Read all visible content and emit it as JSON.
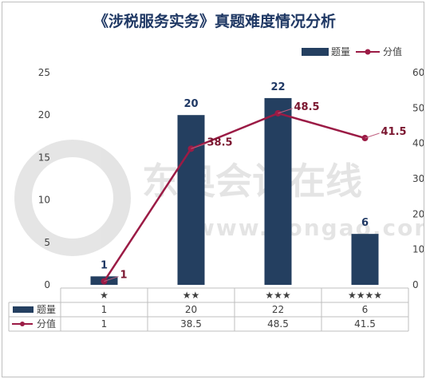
{
  "chart_data": {
    "type": "bar",
    "title": "《涉税服务实务》真题难度情况分析",
    "categories": [
      "★",
      "★★",
      "★★★",
      "★★★★"
    ],
    "series": [
      {
        "name": "题量",
        "type": "bar",
        "axis": "left",
        "values": [
          1,
          20,
          22,
          6
        ],
        "color": "#243f60"
      },
      {
        "name": "分值",
        "type": "line",
        "axis": "right",
        "values": [
          1,
          38.5,
          48.5,
          41.5
        ],
        "color": "#9b1b45"
      }
    ],
    "ylim_left": [
      0,
      25
    ],
    "yticks_left": [
      0,
      5,
      10,
      15,
      20,
      25
    ],
    "ylim_right": [
      0,
      60
    ],
    "yticks_right": [
      0,
      10,
      20,
      30,
      40,
      50,
      60
    ],
    "legend_position": "top-right",
    "data_table": true
  },
  "watermark": {
    "text_cn": "东奥会计在线",
    "text_en": "www.dongao.com"
  }
}
